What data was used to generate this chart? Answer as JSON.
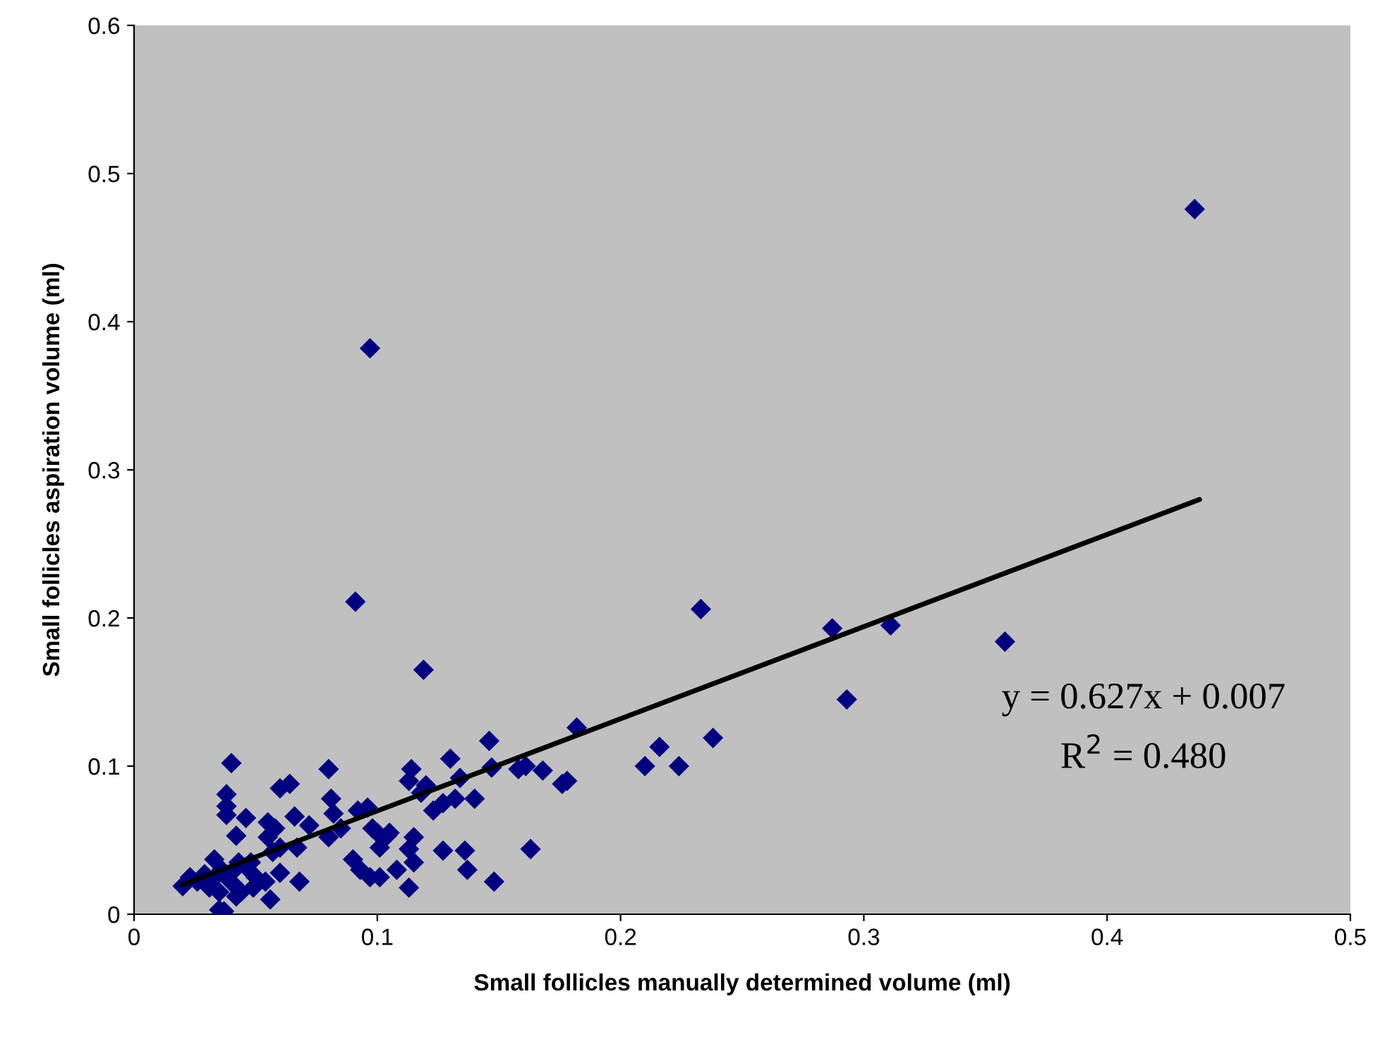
{
  "chart_data": {
    "type": "scatter",
    "xlabel": "Small follicles manually determined volume (ml)",
    "ylabel": "Small follicles aspiration volume (ml)",
    "xlim": [
      0,
      0.5
    ],
    "ylim": [
      0,
      0.6
    ],
    "xticks": [
      0,
      0.1,
      0.2,
      0.3,
      0.4,
      0.5
    ],
    "yticks": [
      0,
      0.1,
      0.2,
      0.3,
      0.4,
      0.5,
      0.6
    ],
    "grid": false,
    "annotations": [
      "y = 0.627x + 0.007",
      "R$^{2}$ = 0.480"
    ],
    "series": [
      {
        "marker": "diamond",
        "color": "#000080",
        "x": [
          0.436,
          0.097,
          0.091,
          0.119,
          0.233,
          0.287,
          0.311,
          0.358,
          0.293,
          0.238,
          0.216,
          0.21,
          0.224,
          0.182,
          0.146,
          0.147,
          0.158,
          0.161,
          0.168,
          0.176,
          0.178,
          0.163,
          0.148,
          0.13,
          0.134,
          0.132,
          0.127,
          0.14,
          0.12,
          0.123,
          0.118,
          0.127,
          0.136,
          0.137,
          0.114,
          0.113,
          0.115,
          0.113,
          0.115,
          0.113,
          0.108,
          0.096,
          0.092,
          0.098,
          0.1,
          0.101,
          0.104,
          0.097,
          0.093,
          0.09,
          0.101,
          0.105,
          0.08,
          0.081,
          0.082,
          0.08,
          0.085,
          0.072,
          0.066,
          0.064,
          0.06,
          0.067,
          0.068,
          0.055,
          0.058,
          0.055,
          0.06,
          0.057,
          0.06,
          0.054,
          0.056,
          0.05,
          0.046,
          0.046,
          0.048,
          0.049,
          0.04,
          0.038,
          0.038,
          0.038,
          0.042,
          0.043,
          0.04,
          0.041,
          0.044,
          0.042,
          0.038,
          0.036,
          0.035,
          0.037,
          0.02,
          0.023,
          0.026,
          0.029,
          0.032,
          0.033,
          0.031,
          0.035
        ],
        "values": [
          0.476,
          0.382,
          0.211,
          0.165,
          0.206,
          0.193,
          0.195,
          0.184,
          0.145,
          0.119,
          0.113,
          0.1,
          0.1,
          0.126,
          0.117,
          0.099,
          0.098,
          0.1,
          0.097,
          0.088,
          0.09,
          0.044,
          0.022,
          0.105,
          0.092,
          0.078,
          0.075,
          0.078,
          0.087,
          0.07,
          0.082,
          0.043,
          0.043,
          0.03,
          0.098,
          0.09,
          0.052,
          0.044,
          0.035,
          0.018,
          0.03,
          0.072,
          0.07,
          0.058,
          0.055,
          0.045,
          0.053,
          0.025,
          0.03,
          0.037,
          0.025,
          0.055,
          0.098,
          0.078,
          0.068,
          0.052,
          0.058,
          0.06,
          0.066,
          0.088,
          0.085,
          0.045,
          0.022,
          0.062,
          0.058,
          0.052,
          0.045,
          0.042,
          0.028,
          0.022,
          0.01,
          0.025,
          0.065,
          0.032,
          0.035,
          0.018,
          0.102,
          0.081,
          0.073,
          0.067,
          0.053,
          0.035,
          0.028,
          0.02,
          0.015,
          0.012,
          0.025,
          0.03,
          0.003,
          0.002,
          0.019,
          0.025,
          0.022,
          0.027,
          0.023,
          0.037,
          0.018,
          0.015
        ]
      },
      {
        "type": "line",
        "color": "#000000",
        "x": [
          0.02,
          0.438
        ],
        "values": [
          0.02,
          0.28
        ],
        "marker": "none"
      }
    ]
  }
}
